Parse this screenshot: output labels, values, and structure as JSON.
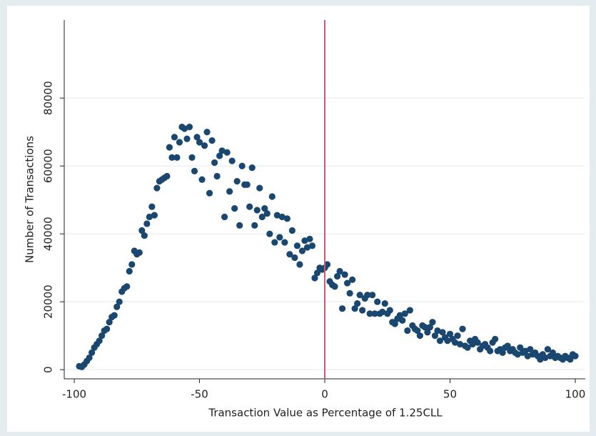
{
  "chart_data": {
    "type": "scatter",
    "xlabel": "Transaction Value as Percentage of 1.25CLL",
    "ylabel": "Number of Transactions",
    "xlim": [
      -104,
      104
    ],
    "ylim": [
      -2700,
      103000
    ],
    "xticks": [
      -100,
      -50,
      0,
      50,
      100
    ],
    "yticks": [
      0,
      20000,
      40000,
      60000,
      80000
    ],
    "grid": true,
    "xline": 0,
    "xline_color": "#d4566f",
    "series": [
      {
        "color": "#1a476f",
        "x": [
          -98,
          -97,
          -96,
          -95,
          -94,
          -93,
          -92,
          -91,
          -90,
          -89,
          -88,
          -87,
          -86,
          -85,
          -84,
          -83,
          -82,
          -81,
          -80,
          -79,
          -78,
          -77,
          -76,
          -75,
          -74,
          -73,
          -72,
          -71,
          -70,
          -69,
          -68,
          -67,
          -66,
          -65,
          -64,
          -63,
          -62,
          -61,
          -60,
          -59,
          -58,
          -57,
          -56,
          -55,
          -54,
          -53,
          -52,
          -51,
          -50,
          -49,
          -48,
          -47,
          -46,
          -45,
          -44,
          -43,
          -42,
          -41,
          -40,
          -39,
          -38,
          -37,
          -36,
          -35,
          -34,
          -33,
          -32,
          -31,
          -30,
          -29,
          -28,
          -27,
          -26,
          -25,
          -24,
          -23,
          -22,
          -21,
          -20,
          -19,
          -18,
          -17,
          -16,
          -15,
          -14,
          -13,
          -12,
          -11,
          -10,
          -9,
          -8,
          -7,
          -6,
          -5,
          -4,
          -3,
          -2,
          -1,
          0,
          1,
          2,
          3,
          4,
          5,
          6,
          7,
          8,
          9,
          10,
          11,
          12,
          13,
          14,
          15,
          16,
          17,
          18,
          19,
          20,
          21,
          22,
          23,
          24,
          25,
          26,
          27,
          28,
          29,
          30,
          31,
          32,
          33,
          34,
          35,
          36,
          37,
          38,
          39,
          40,
          41,
          42,
          43,
          44,
          45,
          46,
          47,
          48,
          49,
          50,
          51,
          52,
          53,
          54,
          55,
          56,
          57,
          58,
          59,
          60,
          61,
          62,
          63,
          64,
          65,
          66,
          67,
          68,
          69,
          70,
          71,
          72,
          73,
          74,
          75,
          76,
          77,
          78,
          79,
          80,
          81,
          82,
          83,
          84,
          85,
          86,
          87,
          88,
          89,
          90,
          91,
          92,
          93,
          94,
          95,
          96,
          97,
          98,
          99,
          100
        ],
        "values": [
          1000,
          800,
          1500,
          2500,
          3500,
          5000,
          6500,
          7500,
          8500,
          10000,
          11500,
          12000,
          14000,
          15500,
          16000,
          18500,
          20000,
          23000,
          24000,
          24500,
          29000,
          31000,
          35000,
          34000,
          34500,
          41000,
          39500,
          43000,
          45000,
          48000,
          45500,
          53500,
          55500,
          56000,
          56500,
          57000,
          65500,
          62500,
          68500,
          62500,
          67000,
          71500,
          71000,
          68000,
          71500,
          62500,
          58500,
          68500,
          67000,
          56000,
          66000,
          70000,
          52000,
          67500,
          61000,
          57000,
          63000,
          64500,
          45000,
          64000,
          52500,
          61500,
          47500,
          55500,
          42500,
          60000,
          54500,
          54500,
          48000,
          59500,
          42500,
          47000,
          53500,
          45000,
          47500,
          46000,
          40000,
          51000,
          37500,
          45500,
          39000,
          45000,
          37500,
          44500,
          34000,
          41000,
          33000,
          36500,
          31000,
          35000,
          38000,
          36000,
          38500,
          36500,
          27000,
          28500,
          30000,
          29500,
          30000,
          31000,
          26000,
          25000,
          24500,
          27500,
          29000,
          18000,
          28000,
          25500,
          22500,
          26500,
          18000,
          19500,
          22000,
          17500,
          21000,
          22000,
          16500,
          22000,
          16500,
          20000,
          16500,
          17000,
          19500,
          16500,
          17500,
          14000,
          13500,
          15000,
          16000,
          14500,
          16500,
          11500,
          17500,
          13000,
          12000,
          11500,
          10000,
          13000,
          12500,
          11000,
          12500,
          14000,
          10000,
          11500,
          8500,
          11000,
          9500,
          8500,
          10500,
          9000,
          8000,
          10000,
          7500,
          12000,
          7000,
          6500,
          8500,
          7500,
          9000,
          8000,
          6000,
          7000,
          7500,
          6500,
          5500,
          8000,
          9000,
          5500,
          6000,
          5000,
          6500,
          7000,
          5500,
          6000,
          5000,
          4500,
          6500,
          5000,
          5500,
          4000,
          6000,
          4500,
          5000,
          4000,
          3000,
          4500,
          3500,
          6000,
          4000,
          5000,
          3500,
          4000,
          3500,
          3000,
          4000,
          3500,
          3000,
          4500,
          4000
        ]
      }
    ]
  }
}
